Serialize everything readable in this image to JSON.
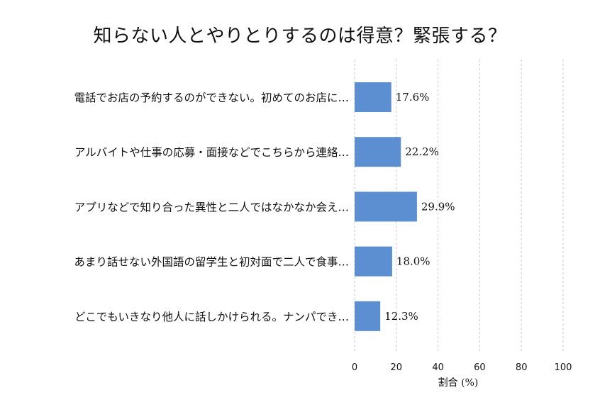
{
  "chart_data": {
    "type": "bar",
    "orientation": "horizontal",
    "title": "知らない人とやりとりするのは得意？緊張する？",
    "xlabel": "割合 (%)",
    "ylabel": "",
    "xlim": [
      0,
      100
    ],
    "xticks": [
      "0",
      "20",
      "40",
      "60",
      "80",
      "100"
    ],
    "grid": "vertical-dashed",
    "bar_color": "#5b8fd1",
    "categories": [
      "電話でお店の予約するのができない。初めてのお店に…",
      "アルバイトや仕事の応募・面接などでこちらから連絡…",
      "アプリなどで知り合った異性と二人ではなかなか会え…",
      "あまり話せない外国語の留学生と初対面で二人で食事…",
      "どこでもいきなり他人に話しかけられる。ナンパでき…"
    ],
    "values": [
      17.6,
      22.2,
      29.9,
      18.0,
      12.3
    ],
    "value_labels": [
      "17.6%",
      "22.2%",
      "29.9%",
      "18.0%",
      "12.3%"
    ]
  }
}
